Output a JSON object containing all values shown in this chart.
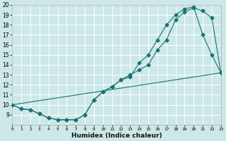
{
  "xlabel": "Humidex (Indice chaleur)",
  "background_color": "#cce8e8",
  "grid_color": "#ffffff",
  "line_color": "#1a7070",
  "xlim": [
    0,
    23
  ],
  "ylim": [
    8,
    20
  ],
  "xticks": [
    0,
    1,
    2,
    3,
    4,
    5,
    6,
    7,
    8,
    9,
    10,
    11,
    12,
    13,
    14,
    15,
    16,
    17,
    18,
    19,
    20,
    21,
    22,
    23
  ],
  "yticks": [
    9,
    10,
    11,
    12,
    13,
    14,
    15,
    16,
    17,
    18,
    19,
    20
  ],
  "line1_x": [
    0,
    1,
    2,
    3,
    4,
    5,
    6,
    7,
    8,
    9,
    10,
    11,
    12,
    13,
    14,
    15,
    16,
    17,
    18,
    19,
    20,
    21,
    22,
    23
  ],
  "line1_y": [
    10.0,
    9.6,
    9.5,
    9.1,
    8.7,
    8.5,
    8.5,
    8.5,
    9.0,
    10.5,
    11.3,
    11.8,
    12.5,
    13.0,
    13.5,
    14.0,
    15.5,
    16.5,
    18.5,
    19.3,
    19.7,
    19.4,
    18.7,
    13.2
  ],
  "line2_x": [
    0,
    1,
    2,
    3,
    4,
    5,
    6,
    7,
    8,
    9,
    10,
    11,
    12,
    13,
    14,
    15,
    16,
    17,
    18,
    19,
    20,
    21,
    22,
    23
  ],
  "line2_y": [
    10.0,
    9.6,
    9.5,
    9.1,
    8.7,
    8.5,
    8.5,
    8.5,
    9.0,
    10.5,
    11.3,
    11.8,
    12.5,
    12.8,
    14.2,
    15.0,
    16.5,
    18.0,
    19.0,
    19.6,
    19.8,
    17.0,
    15.0,
    13.2
  ],
  "line3_x": [
    0,
    23
  ],
  "line3_y": [
    10.0,
    13.2
  ]
}
